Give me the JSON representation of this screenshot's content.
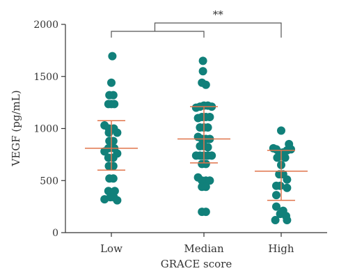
{
  "chart_data": {
    "type": "scatter",
    "subtype": "dot-plot-with-mean-sd",
    "xlabel": "GRACE score",
    "ylabel": "VEGF (pg/mL)",
    "ylim": [
      0,
      2000
    ],
    "yticks": [
      0,
      500,
      1000,
      1500,
      2000
    ],
    "categories": [
      "Low",
      "Median",
      "High"
    ],
    "groups": [
      {
        "category": "Low",
        "mean": 810,
        "sd_low": 600,
        "sd_high": 1075,
        "points": [
          {
            "dx": 0.1,
            "y": 1695
          },
          {
            "dx": 0.0,
            "y": 1440
          },
          {
            "dx": -0.2,
            "y": 1320
          },
          {
            "dx": 0.2,
            "y": 1320
          },
          {
            "dx": -0.3,
            "y": 1235
          },
          {
            "dx": 0.0,
            "y": 1235
          },
          {
            "dx": 0.3,
            "y": 1235
          },
          {
            "dx": -0.7,
            "y": 1030
          },
          {
            "dx": -0.25,
            "y": 1000
          },
          {
            "dx": 0.25,
            "y": 1000
          },
          {
            "dx": -0.25,
            "y": 960
          },
          {
            "dx": 0.6,
            "y": 960
          },
          {
            "dx": -0.2,
            "y": 880
          },
          {
            "dx": 0.2,
            "y": 880
          },
          {
            "dx": -0.3,
            "y": 810
          },
          {
            "dx": 0.3,
            "y": 810
          },
          {
            "dx": -0.7,
            "y": 780
          },
          {
            "dx": 0.6,
            "y": 760
          },
          {
            "dx": -0.3,
            "y": 720
          },
          {
            "dx": 0.2,
            "y": 720
          },
          {
            "dx": -0.25,
            "y": 640
          },
          {
            "dx": 0.2,
            "y": 640
          },
          {
            "dx": -0.2,
            "y": 520
          },
          {
            "dx": 0.2,
            "y": 520
          },
          {
            "dx": -0.3,
            "y": 400
          },
          {
            "dx": 0.35,
            "y": 400
          },
          {
            "dx": -0.7,
            "y": 320
          },
          {
            "dx": -0.1,
            "y": 340
          },
          {
            "dx": 0.25,
            "y": 340
          },
          {
            "dx": 0.6,
            "y": 310
          }
        ]
      },
      {
        "category": "Median",
        "mean": 900,
        "sd_low": 670,
        "sd_high": 1210,
        "points": [
          {
            "dx": -0.1,
            "y": 1650
          },
          {
            "dx": -0.1,
            "y": 1550
          },
          {
            "dx": -0.2,
            "y": 1440
          },
          {
            "dx": 0.2,
            "y": 1420
          },
          {
            "dx": -0.8,
            "y": 1200
          },
          {
            "dx": -0.4,
            "y": 1210
          },
          {
            "dx": 0.0,
            "y": 1220
          },
          {
            "dx": 0.4,
            "y": 1220
          },
          {
            "dx": 0.8,
            "y": 1210
          },
          {
            "dx": -0.6,
            "y": 1100
          },
          {
            "dx": -0.2,
            "y": 1110
          },
          {
            "dx": 0.2,
            "y": 1110
          },
          {
            "dx": 0.6,
            "y": 1110
          },
          {
            "dx": -0.4,
            "y": 1010
          },
          {
            "dx": 0.0,
            "y": 1010
          },
          {
            "dx": 0.4,
            "y": 1010
          },
          {
            "dx": -0.6,
            "y": 920
          },
          {
            "dx": -0.2,
            "y": 900
          },
          {
            "dx": 0.2,
            "y": 900
          },
          {
            "dx": 0.6,
            "y": 900
          },
          {
            "dx": -0.4,
            "y": 830
          },
          {
            "dx": 0.0,
            "y": 830
          },
          {
            "dx": 0.4,
            "y": 820
          },
          {
            "dx": -0.8,
            "y": 740
          },
          {
            "dx": -0.4,
            "y": 740
          },
          {
            "dx": 0.0,
            "y": 740
          },
          {
            "dx": 0.4,
            "y": 740
          },
          {
            "dx": 0.8,
            "y": 740
          },
          {
            "dx": -0.2,
            "y": 660
          },
          {
            "dx": 0.2,
            "y": 660
          },
          {
            "dx": -0.6,
            "y": 530
          },
          {
            "dx": -0.2,
            "y": 500
          },
          {
            "dx": 0.2,
            "y": 500
          },
          {
            "dx": 0.6,
            "y": 500
          },
          {
            "dx": -0.2,
            "y": 440
          },
          {
            "dx": 0.2,
            "y": 440
          },
          {
            "dx": -0.2,
            "y": 200
          },
          {
            "dx": 0.2,
            "y": 200
          }
        ]
      },
      {
        "category": "High",
        "mean": 590,
        "sd_low": 310,
        "sd_high": 790,
        "points": [
          {
            "dx": 0.0,
            "y": 980
          },
          {
            "dx": 0.8,
            "y": 850
          },
          {
            "dx": -0.8,
            "y": 810
          },
          {
            "dx": -0.5,
            "y": 800
          },
          {
            "dx": 1.0,
            "y": 800
          },
          {
            "dx": 0.6,
            "y": 790
          },
          {
            "dx": -0.2,
            "y": 770
          },
          {
            "dx": 0.2,
            "y": 770
          },
          {
            "dx": -0.4,
            "y": 720
          },
          {
            "dx": 0.4,
            "y": 720
          },
          {
            "dx": 0.0,
            "y": 650
          },
          {
            "dx": -0.2,
            "y": 560
          },
          {
            "dx": 0.2,
            "y": 560
          },
          {
            "dx": 0.6,
            "y": 510
          },
          {
            "dx": -0.5,
            "y": 450
          },
          {
            "dx": -0.1,
            "y": 450
          },
          {
            "dx": 0.6,
            "y": 430
          },
          {
            "dx": -0.5,
            "y": 360
          },
          {
            "dx": -0.5,
            "y": 250
          },
          {
            "dx": 0.2,
            "y": 210
          },
          {
            "dx": -0.1,
            "y": 180
          },
          {
            "dx": 0.5,
            "y": 160
          },
          {
            "dx": -0.6,
            "y": 120
          },
          {
            "dx": 0.6,
            "y": 120
          }
        ]
      }
    ],
    "significance": {
      "label": "**",
      "left_bracket": [
        "Low",
        "Median"
      ],
      "compare_to": "High"
    },
    "colors": {
      "point": "#11807a",
      "mean_sd": "#e0734a",
      "axis": "#333333",
      "bracket": "#555555"
    }
  }
}
